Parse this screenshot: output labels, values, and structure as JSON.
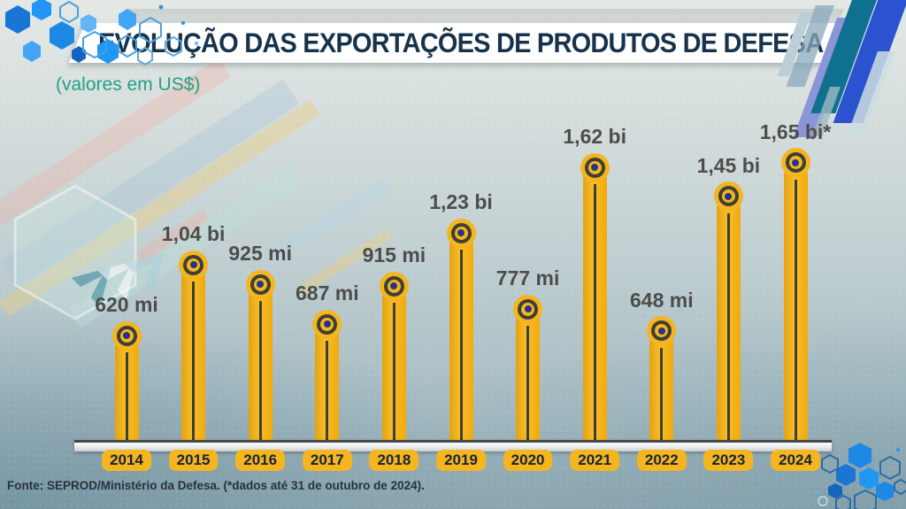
{
  "header": {
    "title": "EVOLUÇÃO DAS EXPORTAÇÕES DE PRODUTOS DE DEFESA",
    "subtitle": "(valores em US$)"
  },
  "footer": {
    "source": "Fonte: SEPROD/Ministério da Defesa. (*dados até 31 de outubro de 2024)."
  },
  "chart_data": {
    "type": "bar",
    "title": "EVOLUÇÃO DAS EXPORTAÇÕES DE PRODUTOS DE DEFESA",
    "subtitle": "(valores em US$)",
    "unit": "US$",
    "categories": [
      "2014",
      "2015",
      "2016",
      "2017",
      "2018",
      "2019",
      "2020",
      "2021",
      "2022",
      "2023",
      "2024"
    ],
    "values_millions_usd": [
      620,
      1040,
      925,
      687,
      915,
      1230,
      777,
      1620,
      648,
      1450,
      1650
    ],
    "value_labels": [
      "620 mi",
      "1,04 bi",
      "925 mi",
      "687 mi",
      "915 mi",
      "1,23 bi",
      "777 mi",
      "1,62 bi",
      "648 mi",
      "1,45 bi",
      "1,65 bi*"
    ],
    "note": "*dados até 31 de outubro de 2024",
    "xlabel": "",
    "ylabel": "",
    "legend": "none",
    "grid": false
  },
  "colors": {
    "bar_yellow": "#F5B51E",
    "title_navy": "#17334B",
    "subtitle_teal": "#23A183",
    "label_gray": "#4D4D4B",
    "year_text": "#16243C",
    "dot_navy": "#27338A"
  },
  "icons": {
    "decor_top_left": "hexagon-cluster-icon",
    "decor_bottom_right": "hexagon-cluster-icon",
    "decor_top_right": "diagonal-stripes"
  }
}
